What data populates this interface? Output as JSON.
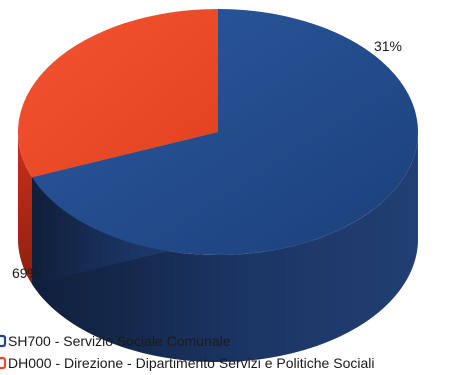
{
  "chart_data": {
    "type": "pie",
    "style": "3d",
    "title": "",
    "slices": [
      {
        "name": "SH700 - Servizio Sociale Comunale",
        "value": 69,
        "label": "69%",
        "color": "#1f4788"
      },
      {
        "name": "DH000 - Direzione - Dipartimento Servizi e Politiche Sociali",
        "value": 31,
        "label": "31%",
        "color": "#ee4b2b"
      }
    ],
    "legend_position": "bottom-left"
  }
}
